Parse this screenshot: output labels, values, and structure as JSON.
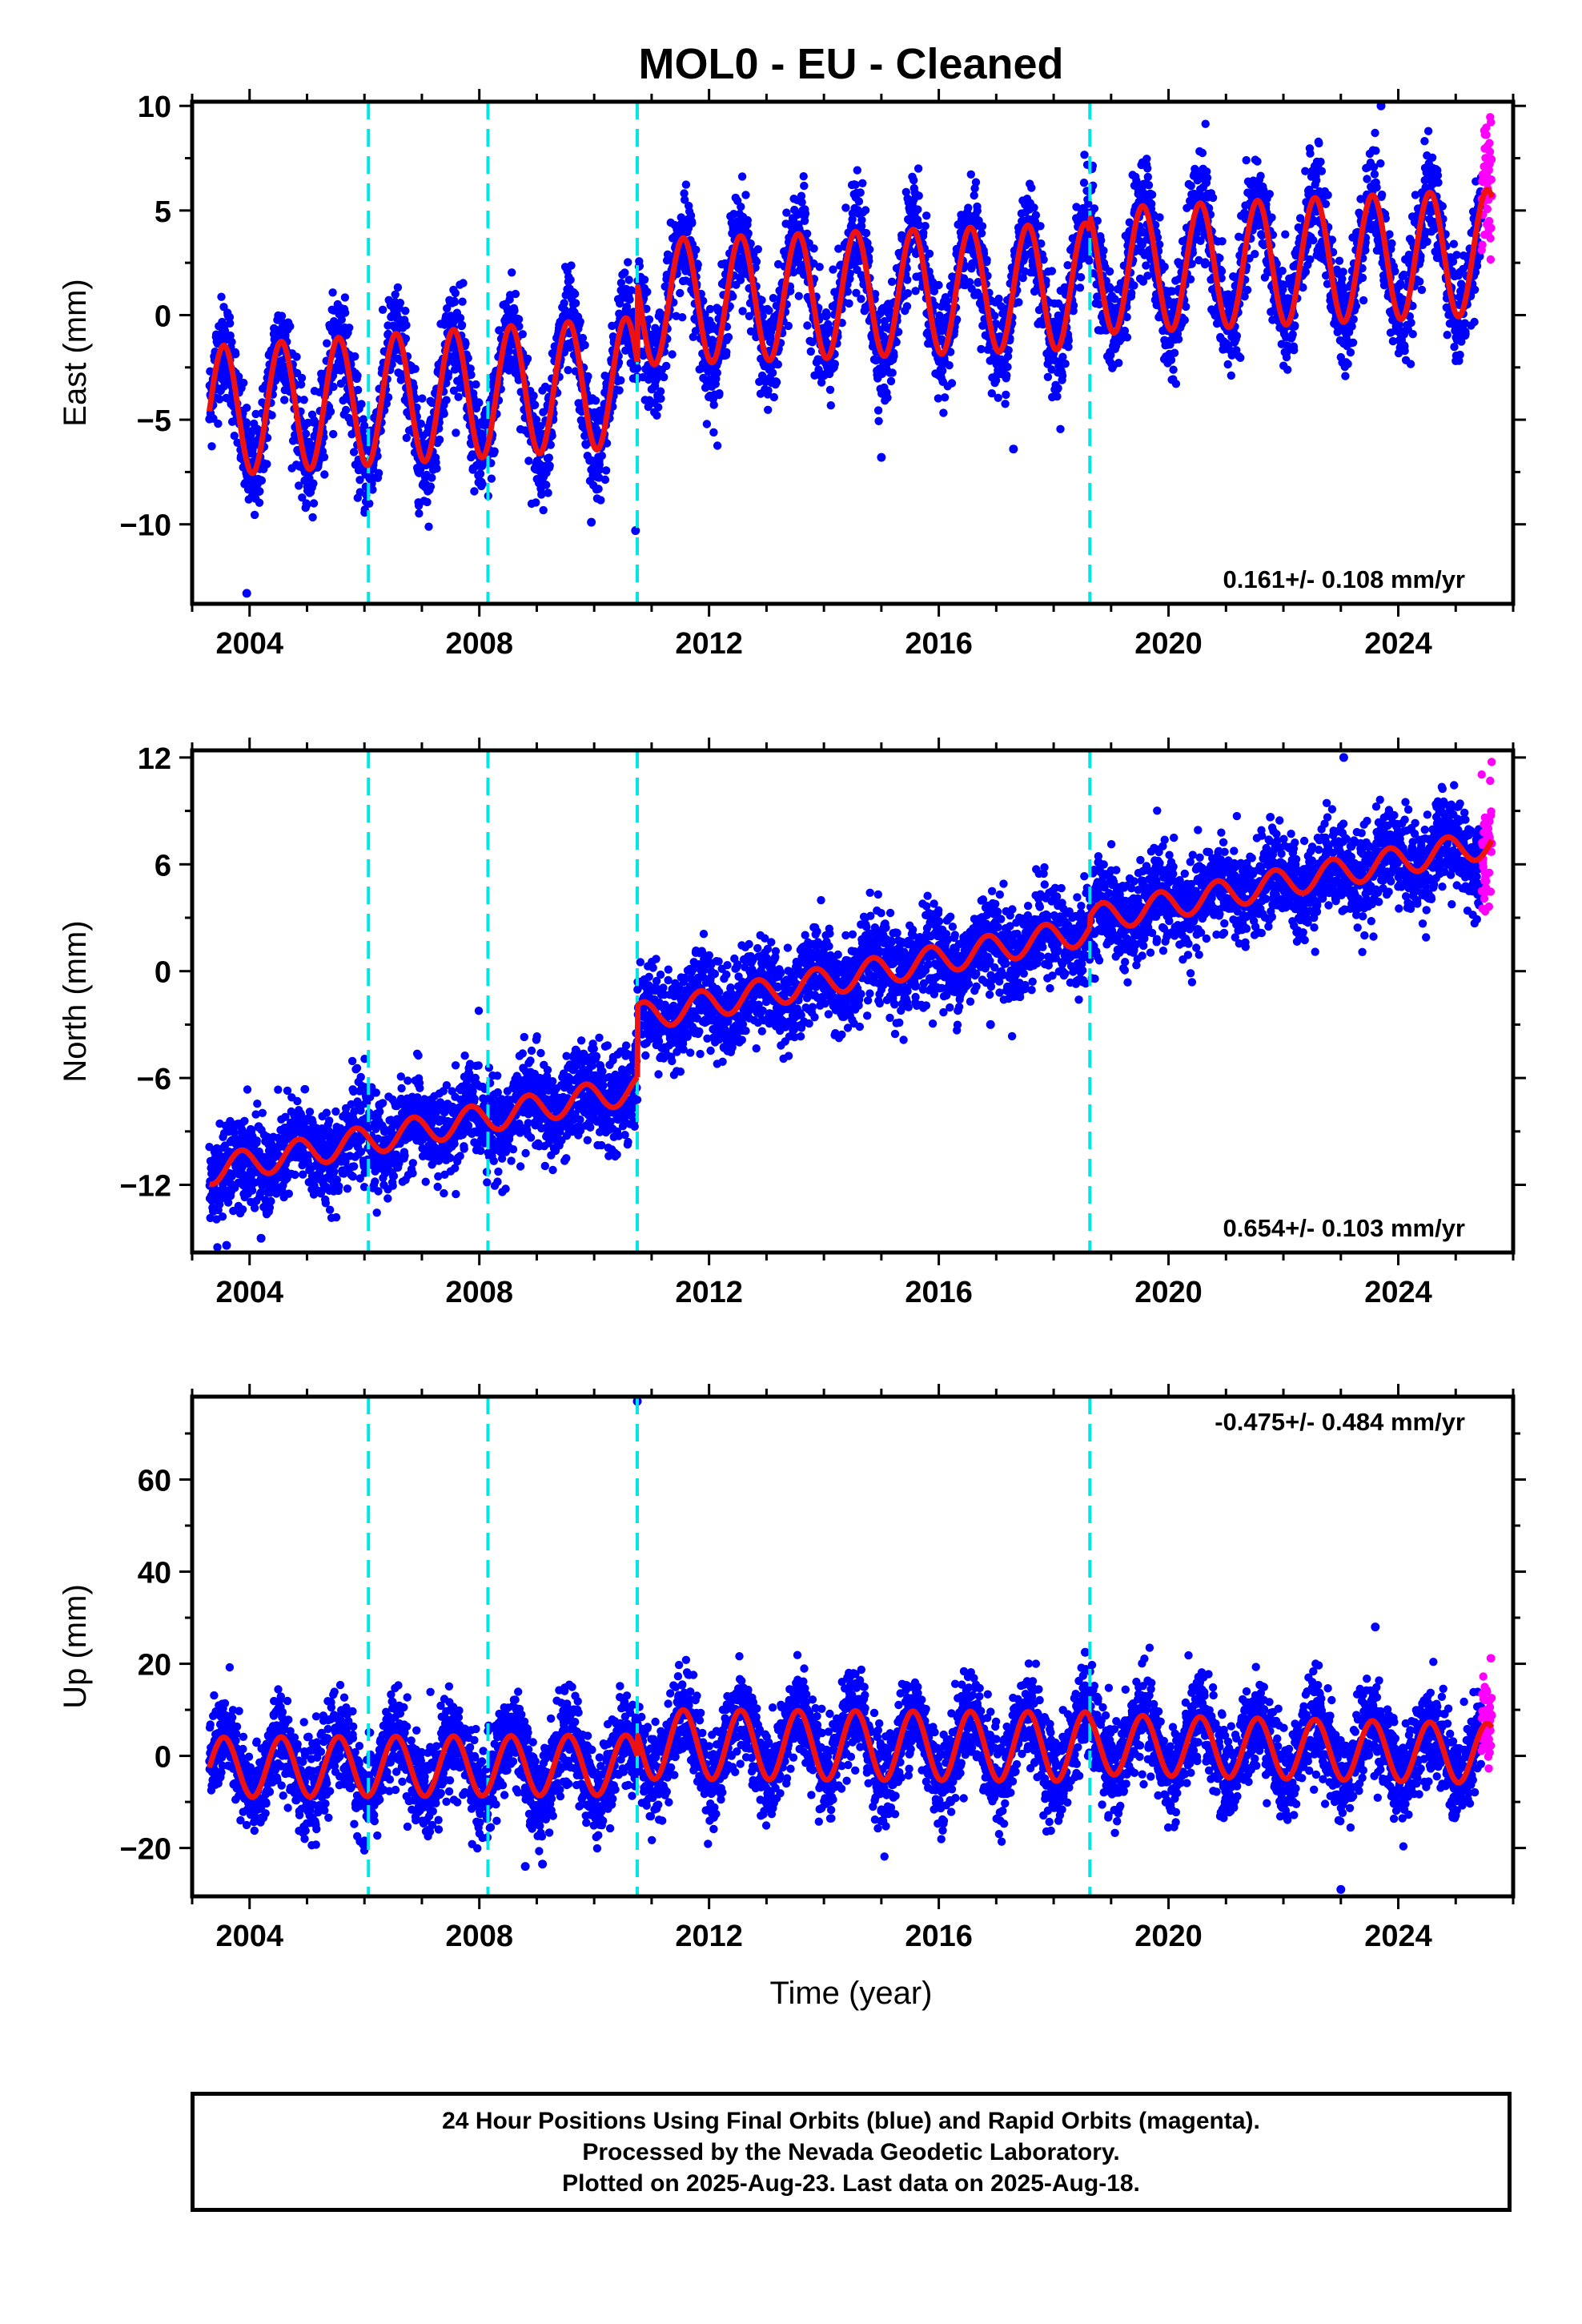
{
  "title": "MOL0  - EU - Cleaned",
  "xlabel": "Time (year)",
  "footer": {
    "line1": "24 Hour Positions Using Final Orbits (blue) and Rapid Orbits (magenta).",
    "line2": "Processed by the Nevada Geodetic Laboratory.",
    "line3": "Plotted on 2025-Aug-23. Last data on 2025-Aug-18."
  },
  "colors": {
    "final_orbits": "#0000ff",
    "rapid_orbits": "#ff00ff",
    "model": "#ee1111",
    "equipment_changes": "#00e5e5"
  },
  "chart_data": [
    {
      "type": "scatter",
      "component": "east",
      "ylabel": "East (mm)",
      "xlim": [
        2003.0,
        2026.0
      ],
      "ylim": [
        -13.8,
        10.2
      ],
      "xticks": [
        2004,
        2008,
        2012,
        2016,
        2020,
        2024
      ],
      "yticks": [
        -10,
        -5,
        0,
        5,
        10
      ],
      "yticklabels": [
        "−10",
        "−5",
        "0",
        "5",
        "10"
      ],
      "rate_label": "0.161+/- 0.108 mm/yr",
      "data_start": 2003.3,
      "data_end": 2025.63,
      "rapid_start": 2025.45,
      "breaks": [
        2006.07,
        2008.15,
        2010.75,
        2018.63
      ],
      "model_segments": [
        {
          "x0": 2003.3,
          "x1": 2010.75,
          "y0": -4.6,
          "y1": -3.2,
          "amp": 3.1,
          "phase": 0.0
        },
        {
          "x0": 2010.75,
          "x1": 2018.63,
          "y0": 0.6,
          "y1": 1.4,
          "amp": 3.0,
          "phase": 0.0
        },
        {
          "x0": 2018.63,
          "x1": 2025.63,
          "y0": 2.1,
          "y1": 3.0,
          "amp": 3.0,
          "phase": 0.0
        }
      ],
      "scatter_sigma": 1.2,
      "outliers": [
        [
          2003.95,
          -13.3
        ],
        [
          2010.72,
          -10.3
        ],
        [
          2015.0,
          -6.8
        ],
        [
          2017.3,
          -6.4
        ],
        [
          2023.7,
          10.0
        ],
        [
          2009.95,
          -9.9
        ]
      ]
    },
    {
      "type": "scatter",
      "component": "north",
      "ylabel": "North (mm)",
      "xlim": [
        2003.0,
        2026.0
      ],
      "ylim": [
        -15.8,
        12.4
      ],
      "xticks": [
        2004,
        2008,
        2012,
        2016,
        2020,
        2024
      ],
      "yticks": [
        -12,
        -6,
        0,
        6,
        12
      ],
      "yticklabels": [
        "−12",
        "−6",
        "0",
        "6",
        "12"
      ],
      "rate_label": "0.654+/- 0.103 mm/yr",
      "data_start": 2003.3,
      "data_end": 2025.63,
      "rapid_start": 2025.45,
      "breaks": [
        2006.07,
        2008.15,
        2010.75,
        2018.63
      ],
      "model_segments": [
        {
          "x0": 2003.3,
          "x1": 2010.75,
          "y0": -11.2,
          "y1": -6.6,
          "amp": 0.8,
          "phase": 0.3
        },
        {
          "x0": 2010.75,
          "x1": 2018.63,
          "y0": -2.6,
          "y1": 2.3,
          "amp": 0.8,
          "phase": 0.3
        },
        {
          "x0": 2018.63,
          "x1": 2025.63,
          "y0": 2.9,
          "y1": 7.2,
          "amp": 0.8,
          "phase": 0.3
        }
      ],
      "scatter_sigma": 1.3,
      "outliers": [
        [
          2023.05,
          12.0
        ],
        [
          2016.9,
          -3.0
        ],
        [
          2003.6,
          -15.4
        ],
        [
          2004.2,
          -15.0
        ]
      ]
    },
    {
      "type": "scatter",
      "component": "up",
      "ylabel": "Up (mm)",
      "xlim": [
        2003.0,
        2026.0
      ],
      "ylim": [
        -30.5,
        78.0
      ],
      "xticks": [
        2004,
        2008,
        2012,
        2016,
        2020,
        2024
      ],
      "yticks": [
        -20,
        0,
        20,
        40,
        60
      ],
      "yticklabels": [
        "−20",
        "0",
        "20",
        "40",
        "60"
      ],
      "rate_label": "-0.475+/- 0.484 mm/yr",
      "data_start": 2003.3,
      "data_end": 2025.63,
      "rapid_start": 2025.45,
      "breaks": [
        2006.07,
        2008.15,
        2010.75,
        2018.63
      ],
      "model_segments": [
        {
          "x0": 2003.3,
          "x1": 2010.75,
          "y0": -2.5,
          "y1": -2.0,
          "amp": 6.5,
          "phase": 0.0
        },
        {
          "x0": 2010.75,
          "x1": 2018.63,
          "y0": 2.5,
          "y1": 2.0,
          "amp": 7.5,
          "phase": 0.0
        },
        {
          "x0": 2018.63,
          "x1": 2025.63,
          "y0": 2.5,
          "y1": 0.5,
          "amp": 6.5,
          "phase": 0.0
        }
      ],
      "scatter_sigma": 5.0,
      "outliers": [
        [
          2010.75,
          77.0
        ],
        [
          2023.6,
          28.0
        ],
        [
          2023.0,
          -29.0
        ],
        [
          2008.8,
          -24.0
        ],
        [
          2009.1,
          -23.5
        ],
        [
          2018.55,
          22.5
        ]
      ]
    }
  ]
}
